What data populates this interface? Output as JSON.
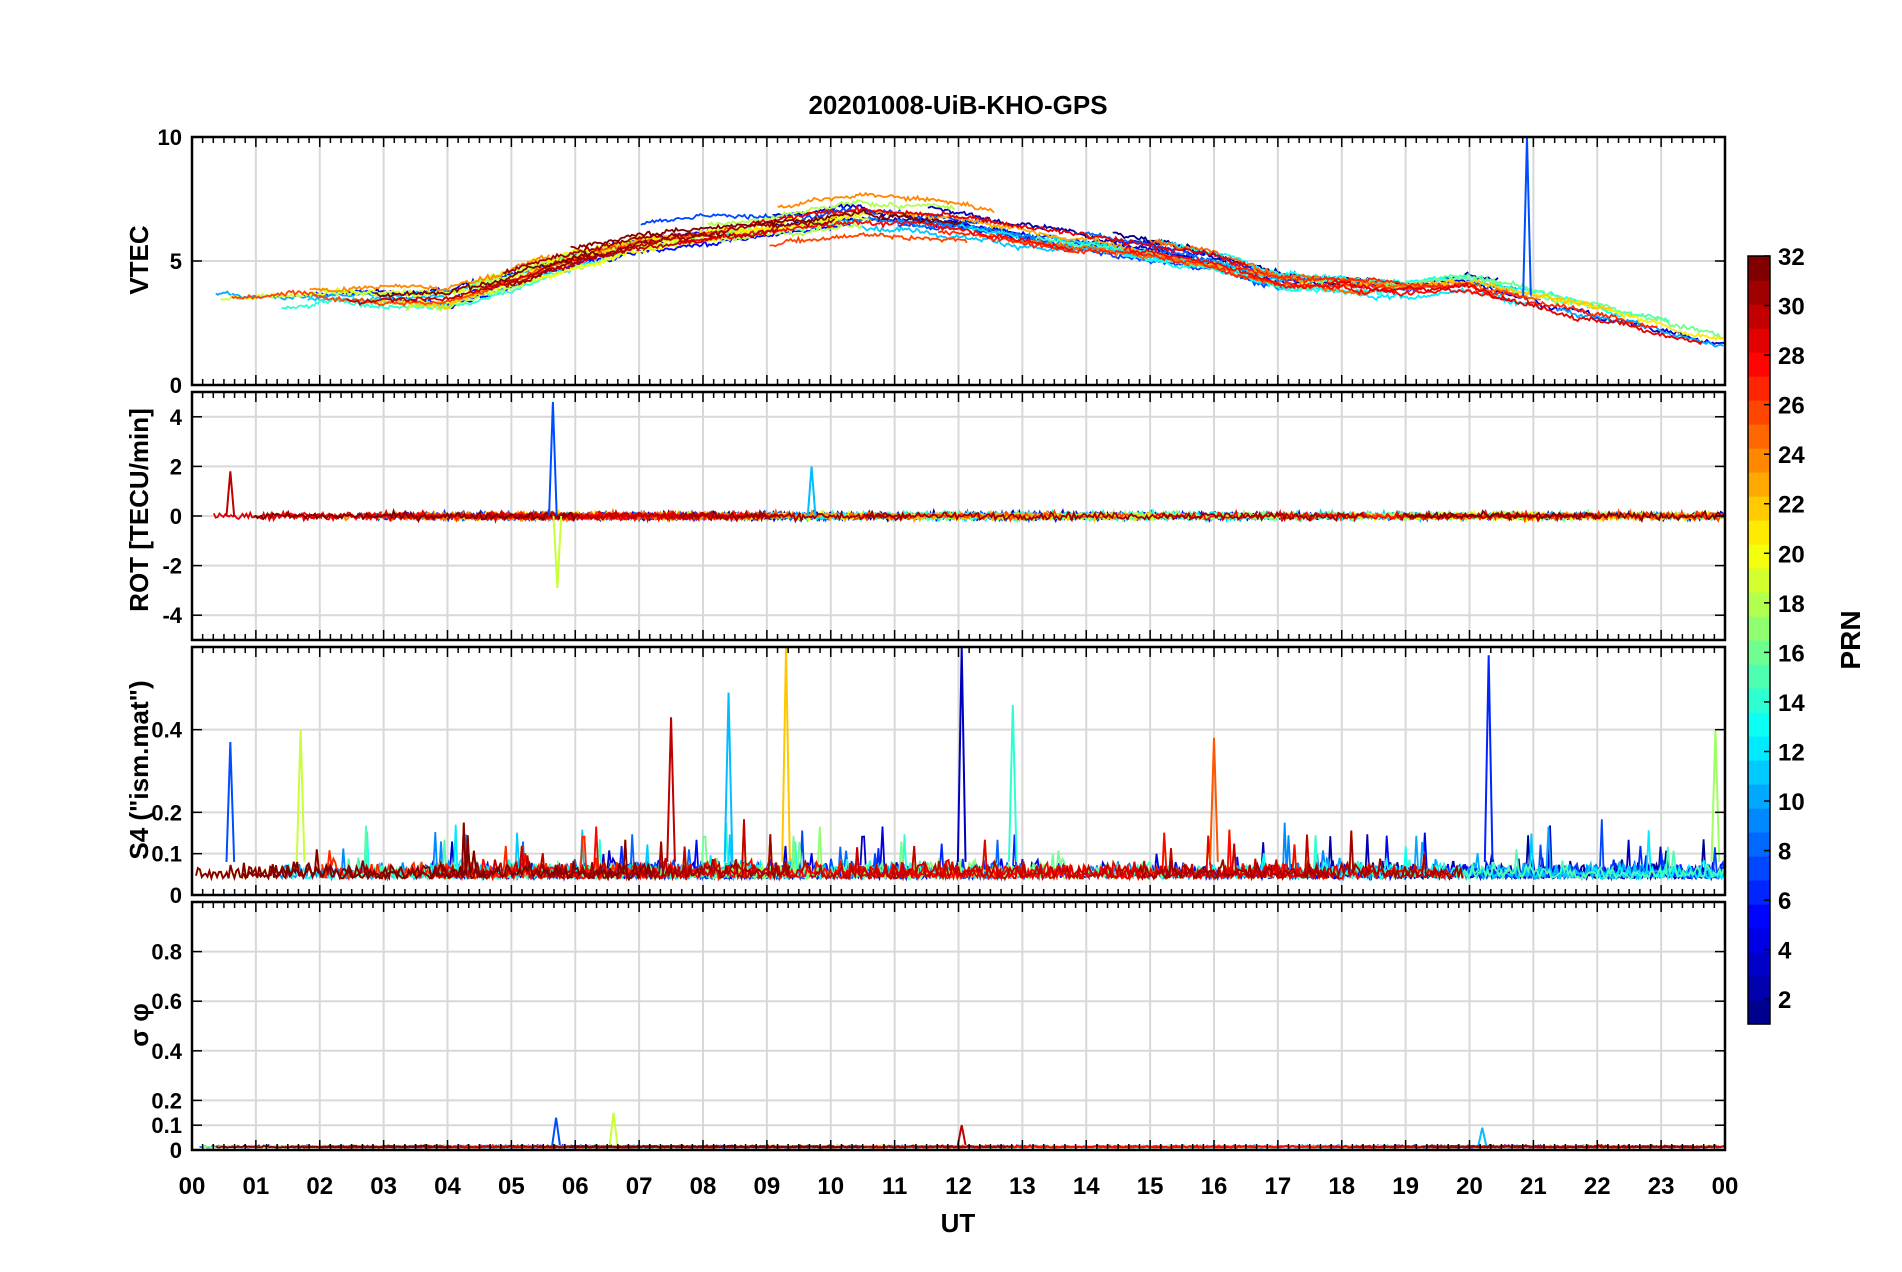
{
  "chart_data": {
    "type": "line",
    "title": "20201008-UiB-KHO-GPS",
    "xlabel": "UT",
    "x_ticks": [
      "00",
      "01",
      "02",
      "03",
      "04",
      "05",
      "06",
      "07",
      "08",
      "09",
      "10",
      "11",
      "12",
      "13",
      "14",
      "15",
      "16",
      "17",
      "18",
      "19",
      "20",
      "21",
      "22",
      "23",
      "00"
    ],
    "xlim_hours": [
      0,
      24
    ],
    "grid": true,
    "colorbar": {
      "label": "PRN",
      "range": [
        1,
        32
      ],
      "ticks": [
        "2",
        "4",
        "6",
        "8",
        "10",
        "12",
        "14",
        "16",
        "18",
        "20",
        "22",
        "24",
        "26",
        "28",
        "30",
        "32"
      ],
      "colormap": "jet",
      "colors": [
        "#00008f",
        "#0000ff",
        "#0080ff",
        "#00ffff",
        "#80ff80",
        "#ffff00",
        "#ff8000",
        "#ff0000",
        "#800000"
      ]
    },
    "panels": [
      {
        "ylabel": "VTEC",
        "ylim": [
          0,
          10
        ],
        "yticks": [
          "0",
          "5",
          "10"
        ],
        "series_summary": [
          {
            "x": [
              0,
              2,
              4,
              5.5,
              7,
              9,
              10.5,
              12,
              14,
              16,
              17,
              19,
              20,
              22,
              24
            ],
            "y": [
              3.2,
              3.5,
              3.5,
              4.8,
              5.8,
              6.4,
              6.9,
              6.6,
              5.8,
              5.0,
              4.2,
              3.9,
              4.1,
              3.0,
              1.8
            ]
          }
        ],
        "spikes": [
          {
            "x": 20.9,
            "y": 10
          }
        ]
      },
      {
        "ylabel": "ROT [TECU/min]",
        "ylim": [
          -5,
          5
        ],
        "yticks": [
          "-4",
          "-2",
          "0",
          "2",
          "4"
        ],
        "series_summary": [
          {
            "x": [
              0,
              24
            ],
            "y": [
              0,
              0
            ]
          }
        ],
        "spikes": [
          {
            "x": 5.65,
            "y": 4.6
          },
          {
            "x": 5.72,
            "y": -2.9
          },
          {
            "x": 0.6,
            "y": 1.8
          },
          {
            "x": 9.7,
            "y": 2.0
          }
        ]
      },
      {
        "ylabel": "S4 (\"ism.mat\")",
        "ylim": [
          0,
          0.6
        ],
        "yticks": [
          "0",
          "0.1",
          "0.2",
          "0.4"
        ],
        "series_summary": [
          {
            "x": [
              0,
              24
            ],
            "y": [
              0.08,
              0.08
            ]
          }
        ],
        "spikes": [
          {
            "x": 0.6,
            "y": 0.37
          },
          {
            "x": 1.7,
            "y": 0.4
          },
          {
            "x": 7.5,
            "y": 0.43
          },
          {
            "x": 8.4,
            "y": 0.49
          },
          {
            "x": 9.3,
            "y": 0.6
          },
          {
            "x": 12.05,
            "y": 0.6
          },
          {
            "x": 12.85,
            "y": 0.46
          },
          {
            "x": 16.0,
            "y": 0.38
          },
          {
            "x": 20.3,
            "y": 0.58
          },
          {
            "x": 23.85,
            "y": 0.4
          }
        ]
      },
      {
        "ylabel": "σ φ",
        "ylim": [
          0,
          1
        ],
        "yticks": [
          "0",
          "0.1",
          "0.2",
          "0.4",
          "0.6",
          "0.8"
        ],
        "series_summary": [
          {
            "x": [
              0,
              24
            ],
            "y": [
              0.02,
              0.02
            ]
          }
        ],
        "spikes": [
          {
            "x": 5.7,
            "y": 0.13
          },
          {
            "x": 6.6,
            "y": 0.15
          },
          {
            "x": 12.05,
            "y": 0.1
          },
          {
            "x": 20.2,
            "y": 0.09
          }
        ]
      }
    ]
  }
}
